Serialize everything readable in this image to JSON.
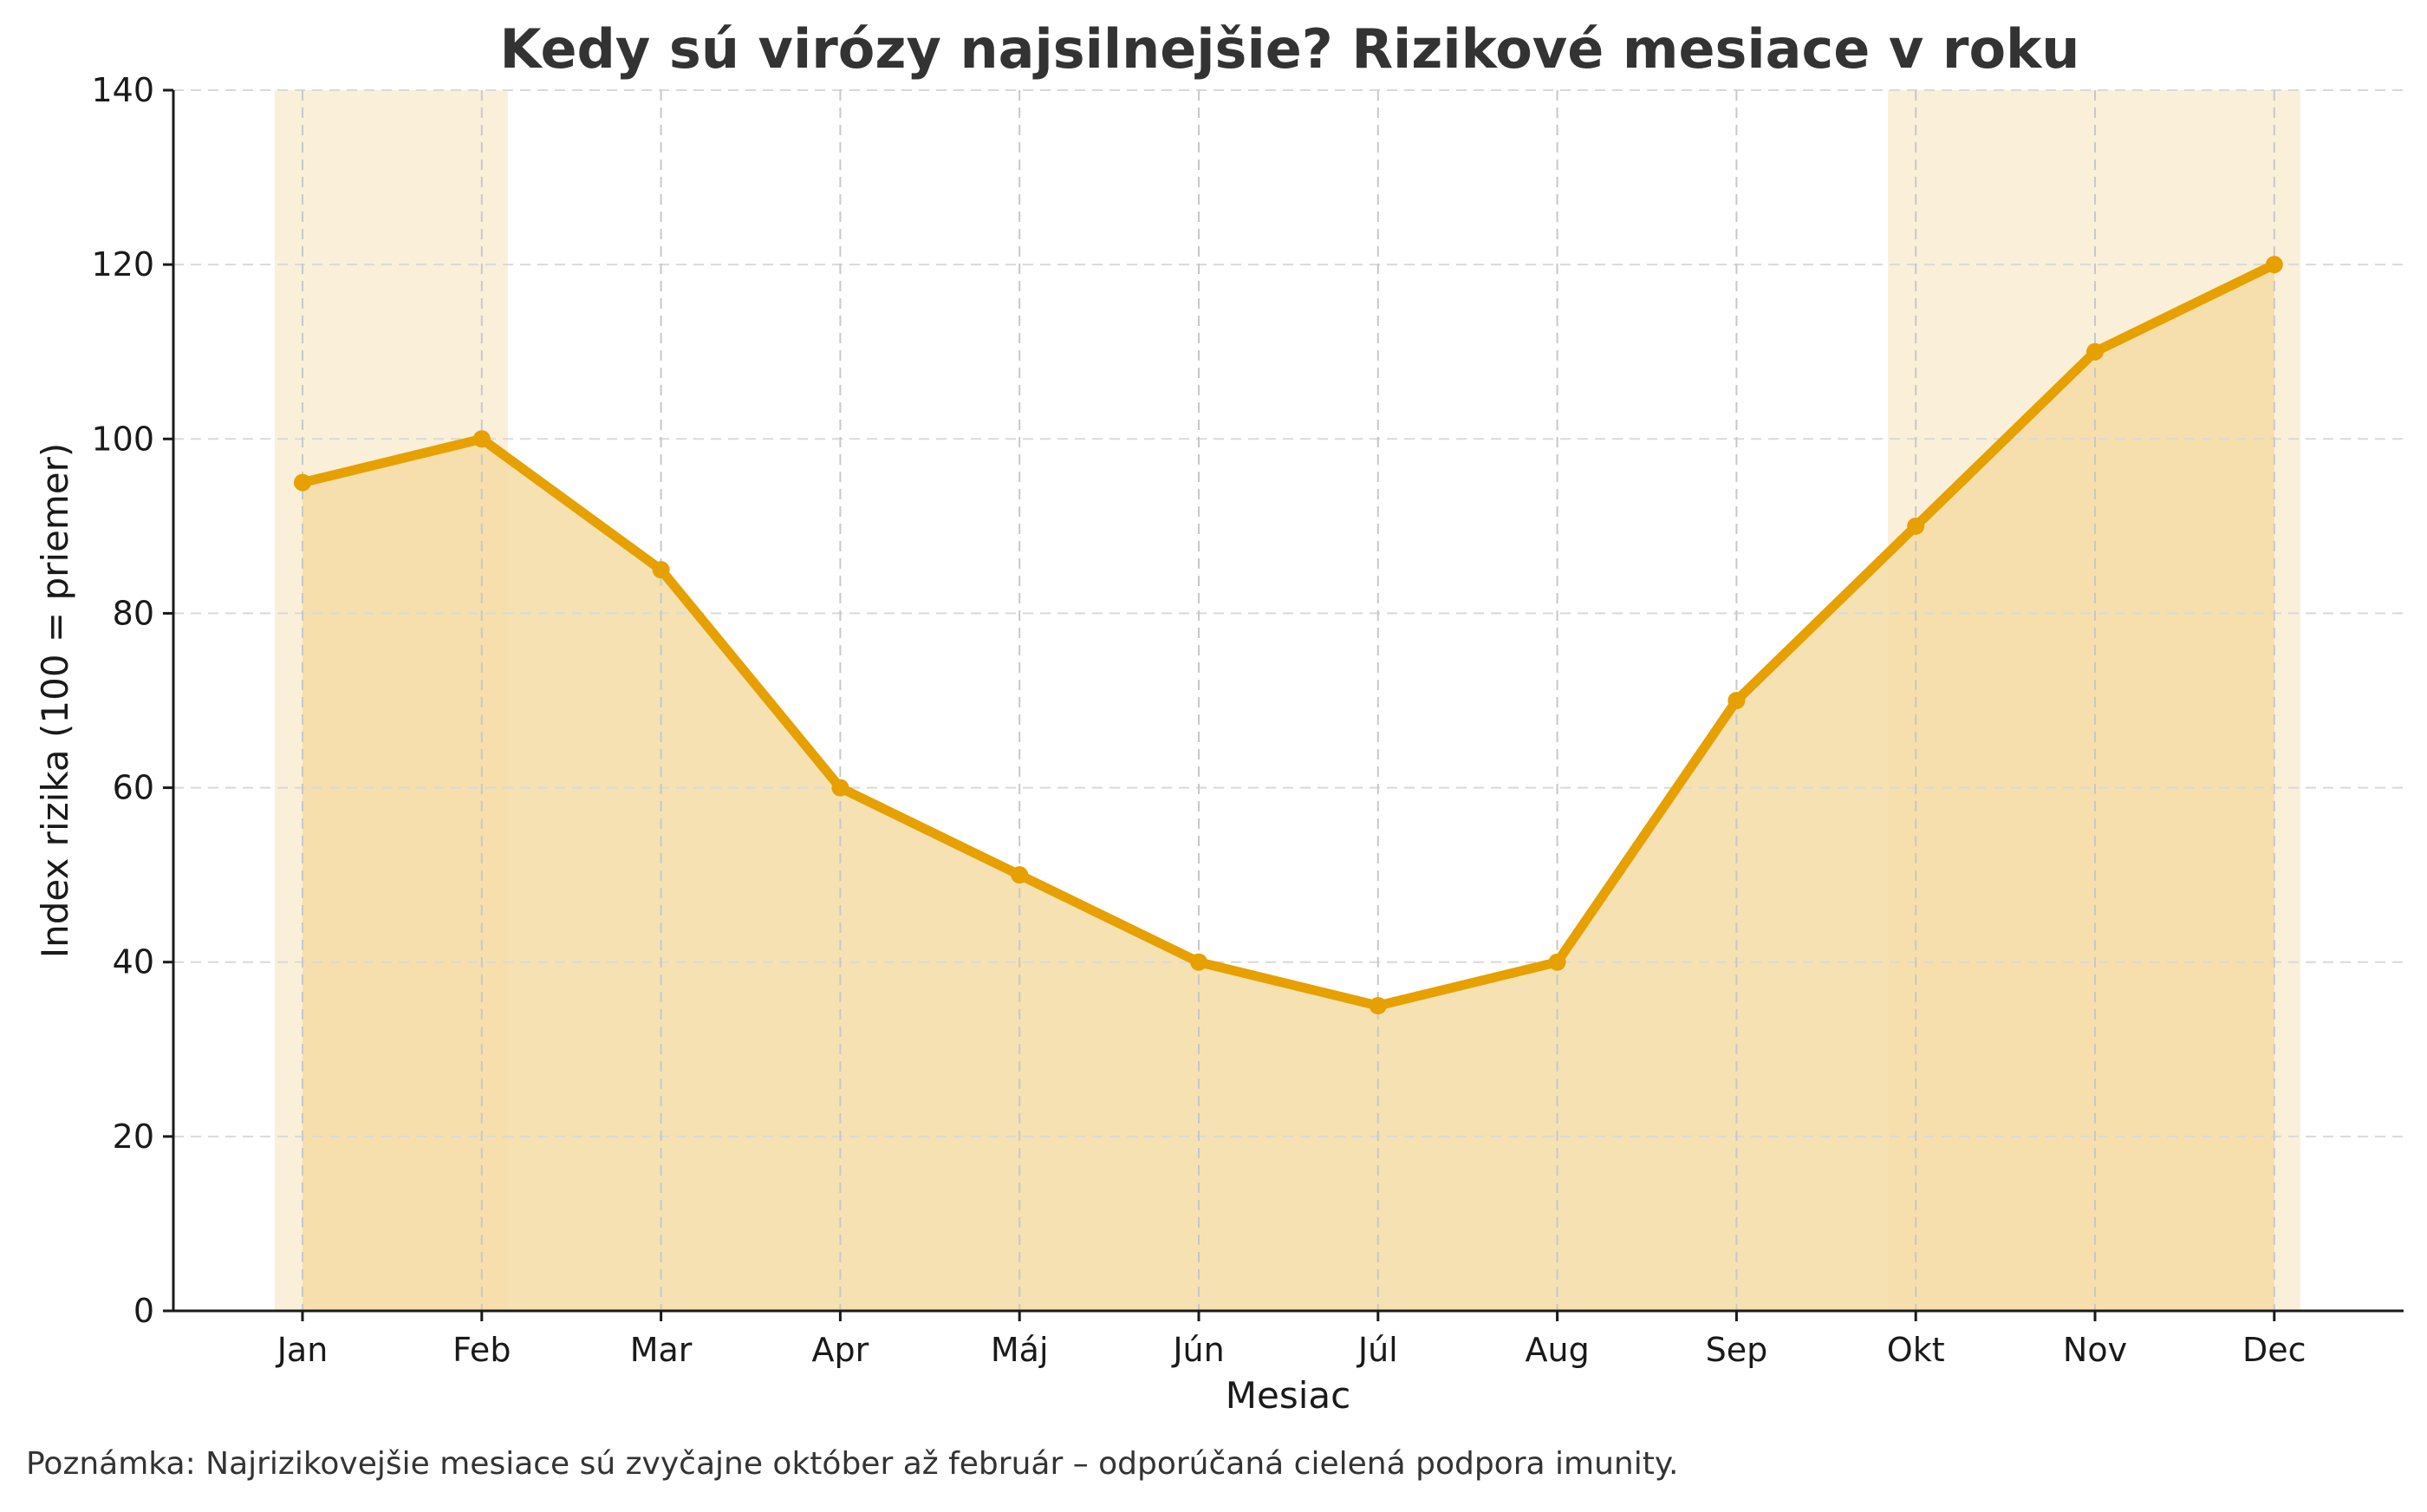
{
  "chart_data": {
    "type": "line",
    "title": "Kedy sú virózy najsilnejšie? Rizikové mesiace v roku",
    "xlabel": "Mesiac",
    "ylabel": "Index rizika (100 = priemer)",
    "categories": [
      "Jan",
      "Feb",
      "Mar",
      "Apr",
      "Máj",
      "Jún",
      "Júl",
      "Aug",
      "Sep",
      "Okt",
      "Nov",
      "Dec"
    ],
    "series": [
      {
        "name": "Index rizika",
        "values": [
          95,
          100,
          85,
          60,
          50,
          40,
          35,
          40,
          70,
          90,
          110,
          120
        ],
        "color": "#e6a000",
        "fill": "#f5dca5",
        "markers": true
      }
    ],
    "ylim": [
      0,
      140
    ],
    "yticks": [
      0,
      20,
      40,
      60,
      80,
      100,
      120,
      140
    ],
    "grid": true,
    "highlight_ranges": [
      {
        "from": "Jan",
        "to": "Feb",
        "color": "#faefd9"
      },
      {
        "from": "Okt",
        "to": "Dec",
        "color": "#faefd9"
      }
    ],
    "annotation": "Poznámka: Najrizikovejšie mesiace sú zvyčajne október až február – odporúčaná cielená podpora imunity."
  },
  "colors": {
    "line": "#e6a000",
    "fill": "#f5dca5",
    "band": "#faefd9",
    "grid": "#d9d9d9",
    "axis": "#1a1a1a",
    "title": "#333333"
  }
}
